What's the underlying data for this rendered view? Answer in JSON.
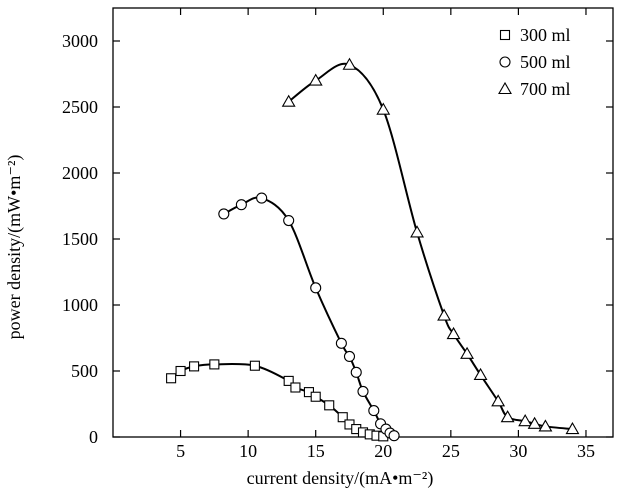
{
  "chart_data": {
    "type": "scatter",
    "title": "",
    "xlabel": "current density/(mA•m⁻²)",
    "ylabel": "power density/(mW•m⁻²)",
    "xlim": [
      0,
      37
    ],
    "ylim": [
      0,
      3250
    ],
    "x_ticks": [
      5,
      10,
      15,
      20,
      25,
      30,
      35
    ],
    "y_ticks": [
      0,
      500,
      1000,
      1500,
      2000,
      2500,
      3000
    ],
    "grid": false,
    "legend_position": "top-right",
    "series": [
      {
        "name": "300 ml",
        "marker": "square",
        "x": [
          4.3,
          5.0,
          6.0,
          7.5,
          10.5,
          13.0,
          13.5,
          14.5,
          15.0,
          16.0,
          17.0,
          17.5,
          18.0,
          18.5,
          19.0,
          19.5,
          20.0
        ],
        "y": [
          445,
          500,
          535,
          550,
          540,
          425,
          375,
          340,
          305,
          240,
          150,
          95,
          60,
          35,
          20,
          10,
          5
        ]
      },
      {
        "name": "500 ml",
        "marker": "circle",
        "x": [
          8.2,
          9.5,
          11.0,
          13.0,
          15.0,
          16.9,
          17.5,
          18.0,
          18.5,
          19.3,
          19.8,
          20.2,
          20.5,
          20.8
        ],
        "y": [
          1690,
          1760,
          1810,
          1640,
          1130,
          710,
          610,
          490,
          345,
          200,
          100,
          60,
          30,
          10
        ]
      },
      {
        "name": "700 ml",
        "marker": "triangle",
        "x": [
          13.0,
          15.0,
          17.5,
          20.0,
          22.5,
          24.5,
          25.2,
          26.2,
          27.2,
          28.5,
          29.2,
          30.5,
          31.2,
          32.0,
          34.0
        ],
        "y": [
          2540,
          2700,
          2820,
          2480,
          1550,
          920,
          780,
          630,
          470,
          270,
          150,
          120,
          100,
          80,
          60
        ]
      }
    ]
  }
}
